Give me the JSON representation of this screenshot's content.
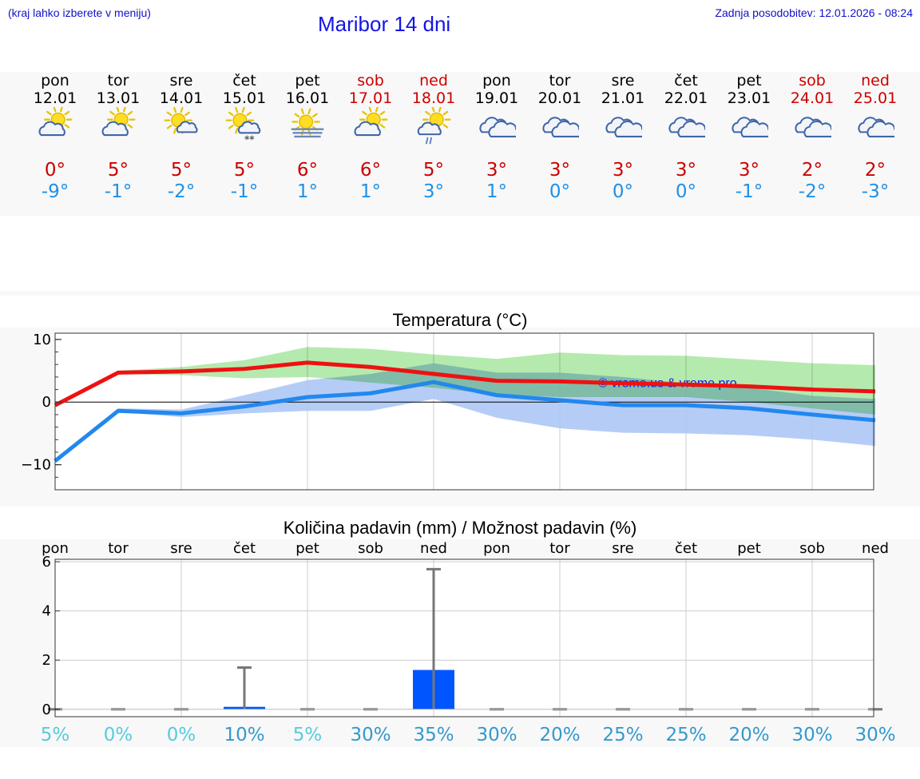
{
  "header": {
    "hint": "(kraj lahko izberete v meniju)",
    "title": "Maribor 14 dni",
    "updated": "Zadnja posodobitev: 12.01.2026 - 08:24"
  },
  "days": [
    {
      "day": "pon",
      "date": "12.01",
      "weekend": false,
      "icon": "sun-cloud-icon",
      "tmax": "0°",
      "tmin": "-9°"
    },
    {
      "day": "tor",
      "date": "13.01",
      "weekend": false,
      "icon": "sun-cloud-icon",
      "tmax": "5°",
      "tmin": "-1°"
    },
    {
      "day": "sre",
      "date": "14.01",
      "weekend": false,
      "icon": "sun-small-cloud-icon",
      "tmax": "5°",
      "tmin": "-2°"
    },
    {
      "day": "čet",
      "date": "15.01",
      "weekend": false,
      "icon": "sun-cloud-snow-icon",
      "tmax": "5°",
      "tmin": "-1°"
    },
    {
      "day": "pet",
      "date": "16.01",
      "weekend": false,
      "icon": "sun-fog-icon",
      "tmax": "6°",
      "tmin": "1°"
    },
    {
      "day": "sob",
      "date": "17.01",
      "weekend": true,
      "icon": "sun-cloud-icon",
      "tmax": "6°",
      "tmin": "1°"
    },
    {
      "day": "ned",
      "date": "18.01",
      "weekend": true,
      "icon": "sun-cloud-rain-icon",
      "tmax": "5°",
      "tmin": "3°"
    },
    {
      "day": "pon",
      "date": "19.01",
      "weekend": false,
      "icon": "cloudy-icon",
      "tmax": "3°",
      "tmin": "1°"
    },
    {
      "day": "tor",
      "date": "20.01",
      "weekend": false,
      "icon": "cloudy-icon",
      "tmax": "3°",
      "tmin": "0°"
    },
    {
      "day": "sre",
      "date": "21.01",
      "weekend": false,
      "icon": "cloudy-icon",
      "tmax": "3°",
      "tmin": "0°"
    },
    {
      "day": "čet",
      "date": "22.01",
      "weekend": false,
      "icon": "cloudy-icon",
      "tmax": "3°",
      "tmin": "0°"
    },
    {
      "day": "pet",
      "date": "23.01",
      "weekend": false,
      "icon": "cloudy-icon",
      "tmax": "3°",
      "tmin": "-1°"
    },
    {
      "day": "sob",
      "date": "24.01",
      "weekend": true,
      "icon": "cloudy-icon",
      "tmax": "2°",
      "tmin": "-2°"
    },
    {
      "day": "ned",
      "date": "25.01",
      "weekend": true,
      "icon": "cloudy-icon",
      "tmax": "2°",
      "tmin": "-3°"
    }
  ],
  "colors": {
    "max_line": "#ee1111",
    "min_line": "#2288ee",
    "max_band": "#a8e6a0",
    "min_band": "#a8c4f4",
    "bar": "#0055ff",
    "weekend": "#cc0000",
    "title_blue": "#1414e6"
  },
  "chart_data": [
    {
      "type": "line",
      "title": "Temperatura (°C)",
      "xlabel": "",
      "ylabel": "",
      "ylim": [
        -14,
        11
      ],
      "yticks": [
        10,
        0,
        -10
      ],
      "ytick_labels": [
        "10",
        "0",
        "−10"
      ],
      "watermark": "© vreme.us & vreme.pro",
      "x": [
        0,
        1,
        2,
        3,
        4,
        5,
        6,
        7,
        8,
        9,
        10,
        11,
        12,
        13
      ],
      "series": [
        {
          "name": "max",
          "values": [
            -0.5,
            4.7,
            4.9,
            5.3,
            6.3,
            5.6,
            4.5,
            3.4,
            3.3,
            3.0,
            2.8,
            2.5,
            2.0,
            1.7
          ],
          "band_low": [
            -0.5,
            4.5,
            4.3,
            3.8,
            4.0,
            3.1,
            2.3,
            1.2,
            0.8,
            0.8,
            0.8,
            0.0,
            -1.0,
            -2.0
          ],
          "band_high": [
            -0.5,
            5.0,
            5.6,
            6.7,
            8.8,
            8.5,
            7.6,
            6.9,
            7.9,
            7.5,
            7.4,
            6.8,
            6.2,
            5.9
          ]
        },
        {
          "name": "min",
          "values": [
            -9.4,
            -1.4,
            -1.8,
            -0.7,
            0.8,
            1.4,
            3.2,
            1.1,
            0.3,
            -0.5,
            -0.5,
            -1.0,
            -2.0,
            -2.9
          ],
          "band_low": [
            -9.4,
            -1.6,
            -2.4,
            -1.8,
            -1.4,
            -1.4,
            0.5,
            -2.5,
            -4.2,
            -4.9,
            -5.0,
            -5.3,
            -6.0,
            -7.0
          ],
          "band_high": [
            -9.4,
            -1.0,
            -1.2,
            1.1,
            3.5,
            4.5,
            6.2,
            4.7,
            4.7,
            4.0,
            3.0,
            2.3,
            1.0,
            0.5
          ]
        }
      ]
    },
    {
      "type": "bar",
      "title": "Količina padavin (mm) / Možnost padavin (%)",
      "categories": [
        "pon",
        "tor",
        "sre",
        "čet",
        "pet",
        "sob",
        "ned",
        "pon",
        "tor",
        "sre",
        "čet",
        "pet",
        "sob",
        "ned"
      ],
      "ylim": [
        -0.3,
        6.1
      ],
      "yticks": [
        0,
        2,
        4,
        6
      ],
      "ytick_labels": [
        "0",
        "2",
        "4",
        "6"
      ],
      "values": [
        0,
        0,
        0,
        0.1,
        0,
        0,
        1.6,
        0,
        0,
        0,
        0,
        0,
        0,
        0
      ],
      "error_max": [
        0,
        0,
        0,
        1.7,
        0,
        0,
        5.7,
        0,
        0,
        0,
        0,
        0,
        0,
        0
      ],
      "probability": [
        "5%",
        "0%",
        "0%",
        "10%",
        "5%",
        "30%",
        "35%",
        "30%",
        "20%",
        "25%",
        "25%",
        "20%",
        "30%",
        "30%"
      ],
      "probability_values": [
        5,
        0,
        0,
        10,
        5,
        30,
        35,
        30,
        20,
        25,
        25,
        20,
        30,
        30
      ]
    }
  ]
}
